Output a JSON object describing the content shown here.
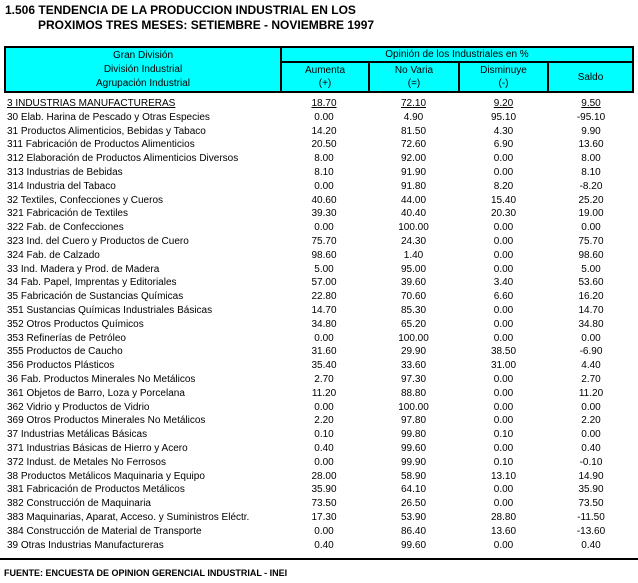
{
  "title": {
    "line1": "1.506 TENDENCIA DE LA PRODUCCION INDUSTRIAL EN LOS",
    "line2": "PROXIMOS TRES MESES: SETIEMBRE - NOVIEMBRE 1997"
  },
  "colors": {
    "header_bg": "#00FFFF",
    "border": "#000000",
    "text": "#000000"
  },
  "table": {
    "header": {
      "left_lines": [
        "Gran División",
        "División Industrial",
        "Agrupación Industrial"
      ],
      "group_label": "Opinión de los Industriales en %",
      "columns": [
        {
          "label": "Aumenta",
          "sign": "(+)"
        },
        {
          "label": "No Varia",
          "sign": "(=)"
        },
        {
          "label": "Disminuye",
          "sign": "(-)"
        },
        {
          "label": "Saldo",
          "sign": ""
        }
      ]
    },
    "rows": [
      {
        "label": "3 INDUSTRIAS MANUFACTURERAS",
        "aumenta": "18.70",
        "no_varia": "72.10",
        "disminuye": "9.20",
        "saldo": "9.50",
        "underline": true
      },
      {
        "label": "30 Elab. Harina de Pescado y Otras Especies",
        "aumenta": "0.00",
        "no_varia": "4.90",
        "disminuye": "95.10",
        "saldo": "-95.10",
        "underline": false
      },
      {
        "label": "31 Productos Alimenticios, Bebidas y Tabaco",
        "aumenta": "14.20",
        "no_varia": "81.50",
        "disminuye": "4.30",
        "saldo": "9.90",
        "underline": false
      },
      {
        "label": "311 Fabricación de Productos Alimenticios",
        "aumenta": "20.50",
        "no_varia": "72.60",
        "disminuye": "6.90",
        "saldo": "13.60",
        "underline": false
      },
      {
        "label": "312 Elaboración de Productos Alimenticios Diversos",
        "aumenta": "8.00",
        "no_varia": "92.00",
        "disminuye": "0.00",
        "saldo": "8.00",
        "underline": false
      },
      {
        "label": "313 Industrias de Bebidas",
        "aumenta": "8.10",
        "no_varia": "91.90",
        "disminuye": "0.00",
        "saldo": "8.10",
        "underline": false
      },
      {
        "label": "314 Industria del Tabaco",
        "aumenta": "0.00",
        "no_varia": "91.80",
        "disminuye": "8.20",
        "saldo": "-8.20",
        "underline": false
      },
      {
        "label": "32 Textiles, Confecciones y Cueros",
        "aumenta": "40.60",
        "no_varia": "44.00",
        "disminuye": "15.40",
        "saldo": "25.20",
        "underline": false
      },
      {
        "label": "321 Fabricación de Textiles",
        "aumenta": "39.30",
        "no_varia": "40.40",
        "disminuye": "20.30",
        "saldo": "19.00",
        "underline": false
      },
      {
        "label": "322 Fab. de Confecciones",
        "aumenta": "0.00",
        "no_varia": "100.00",
        "disminuye": "0.00",
        "saldo": "0.00",
        "underline": false
      },
      {
        "label": "323 Ind. del Cuero y Productos de Cuero",
        "aumenta": "75.70",
        "no_varia": "24.30",
        "disminuye": "0.00",
        "saldo": "75.70",
        "underline": false
      },
      {
        "label": "324 Fab. de Calzado",
        "aumenta": "98.60",
        "no_varia": "1.40",
        "disminuye": "0.00",
        "saldo": "98.60",
        "underline": false
      },
      {
        "label": "33 Ind. Madera y Prod. de Madera",
        "aumenta": "5.00",
        "no_varia": "95.00",
        "disminuye": "0.00",
        "saldo": "5.00",
        "underline": false
      },
      {
        "label": "34 Fab. Papel, Imprentas y Editoriales",
        "aumenta": "57.00",
        "no_varia": "39.60",
        "disminuye": "3.40",
        "saldo": "53.60",
        "underline": false
      },
      {
        "label": "35 Fabricación de Sustancias Químicas",
        "aumenta": "22.80",
        "no_varia": "70.60",
        "disminuye": "6.60",
        "saldo": "16.20",
        "underline": false
      },
      {
        "label": "351 Sustancias Químicas Industriales Básicas",
        "aumenta": "14.70",
        "no_varia": "85.30",
        "disminuye": "0.00",
        "saldo": "14.70",
        "underline": false
      },
      {
        "label": "352 Otros Productos Químicos",
        "aumenta": "34.80",
        "no_varia": "65.20",
        "disminuye": "0.00",
        "saldo": "34.80",
        "underline": false
      },
      {
        "label": "353 Refinerías de Petróleo",
        "aumenta": "0.00",
        "no_varia": "100.00",
        "disminuye": "0.00",
        "saldo": "0.00",
        "underline": false
      },
      {
        "label": "355 Productos de Caucho",
        "aumenta": "31.60",
        "no_varia": "29.90",
        "disminuye": "38.50",
        "saldo": "-6.90",
        "underline": false
      },
      {
        "label": "356 Productos Plásticos",
        "aumenta": "35.40",
        "no_varia": "33.60",
        "disminuye": "31.00",
        "saldo": "4.40",
        "underline": false
      },
      {
        "label": "36 Fab. Productos Minerales No Metálicos",
        "aumenta": "2.70",
        "no_varia": "97.30",
        "disminuye": "0.00",
        "saldo": "2.70",
        "underline": false
      },
      {
        "label": "361 Objetos de Barro, Loza y Porcelana",
        "aumenta": "11.20",
        "no_varia": "88.80",
        "disminuye": "0.00",
        "saldo": "11.20",
        "underline": false
      },
      {
        "label": "362 Vidrio y Productos de Vidrio",
        "aumenta": "0.00",
        "no_varia": "100.00",
        "disminuye": "0.00",
        "saldo": "0.00",
        "underline": false
      },
      {
        "label": "369 Otros Productos Minerales No Metálicos",
        "aumenta": "2.20",
        "no_varia": "97.80",
        "disminuye": "0.00",
        "saldo": "2.20",
        "underline": false
      },
      {
        "label": "37 Industrias Metálicas Básicas",
        "aumenta": "0.10",
        "no_varia": "99.80",
        "disminuye": "0.10",
        "saldo": "0.00",
        "underline": false
      },
      {
        "label": "371 Industrias Básicas de Hierro y Acero",
        "aumenta": "0.40",
        "no_varia": "99.60",
        "disminuye": "0.00",
        "saldo": "0.40",
        "underline": false
      },
      {
        "label": "372 Indust. de Metales No Ferrosos",
        "aumenta": "0.00",
        "no_varia": "99.90",
        "disminuye": "0.10",
        "saldo": "-0.10",
        "underline": false
      },
      {
        "label": "38 Productos Metálicos Maquinaria y Equipo",
        "aumenta": "28.00",
        "no_varia": "58.90",
        "disminuye": "13.10",
        "saldo": "14.90",
        "underline": false
      },
      {
        "label": "381 Fabricación de Productos Metálicos",
        "aumenta": "35.90",
        "no_varia": "64.10",
        "disminuye": "0.00",
        "saldo": "35.90",
        "underline": false
      },
      {
        "label": "382 Construcción de Maquinaria",
        "aumenta": "73.50",
        "no_varia": "26.50",
        "disminuye": "0.00",
        "saldo": "73.50",
        "underline": false
      },
      {
        "label": "383 Maquinarias, Aparat, Acceso. y Suministros Eléctr.",
        "aumenta": "17.30",
        "no_varia": "53.90",
        "disminuye": "28.80",
        "saldo": "-11.50",
        "underline": false
      },
      {
        "label": "384 Construcción de Material de Transporte",
        "aumenta": "0.00",
        "no_varia": "86.40",
        "disminuye": "13.60",
        "saldo": "-13.60",
        "underline": false
      },
      {
        "label": "39 Otras Industrias Manufactureras",
        "aumenta": "0.40",
        "no_varia": "99.60",
        "disminuye": "0.00",
        "saldo": "0.40",
        "underline": false
      }
    ]
  },
  "footer": {
    "source": "FUENTE: ENCUESTA DE OPINION GERENCIAL INDUSTRIAL - INEI"
  }
}
